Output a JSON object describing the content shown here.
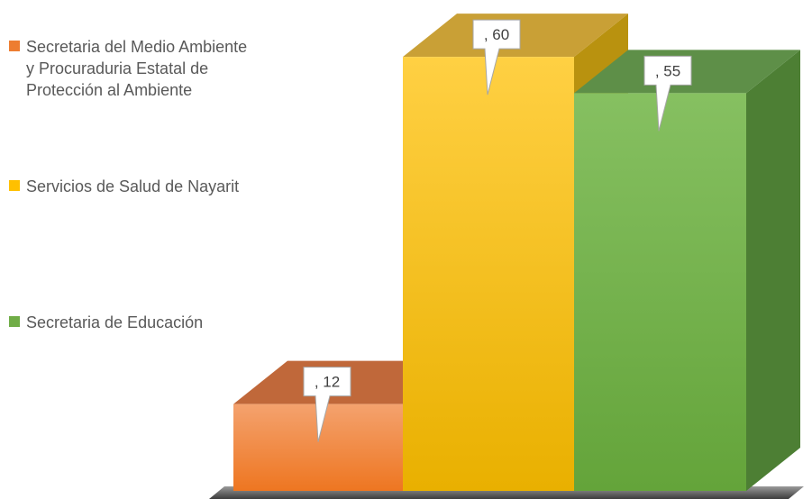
{
  "chart_data": {
    "type": "bar",
    "style": "3d-column",
    "categories": [
      "Secretaria del Medio Ambiente y Procuraduria Estatal de Protección al Ambiente",
      "Servicios de Salud de Nayarit",
      "Secretaria de Educación"
    ],
    "values": [
      12,
      60,
      55
    ],
    "data_labels": [
      ", 12",
      ", 60",
      ", 55"
    ],
    "colors": [
      "#ED7D31",
      "#FFC000",
      "#70AD47"
    ],
    "legend_position": "left",
    "grid": false,
    "ylim": [
      0,
      66
    ]
  }
}
